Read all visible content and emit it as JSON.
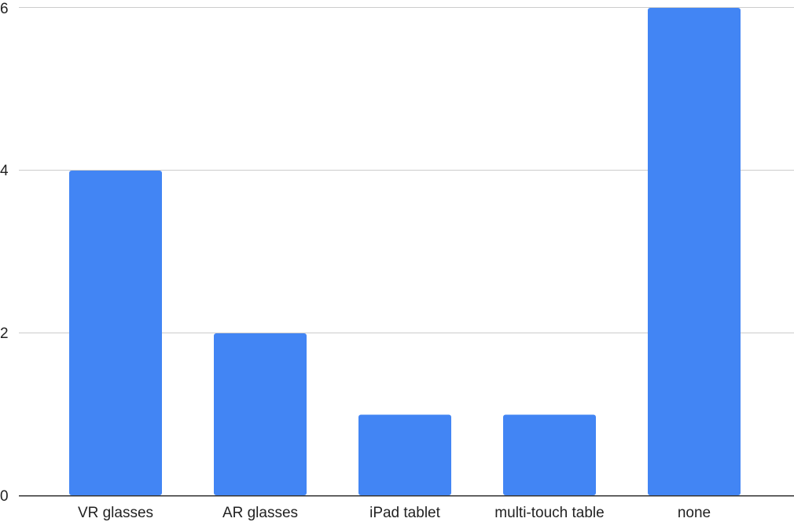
{
  "chart_data": {
    "type": "bar",
    "title": "",
    "xlabel": "",
    "ylabel": "",
    "categories": [
      "VR glasses",
      "AR glasses",
      "iPad tablet",
      "multi-touch table",
      "none"
    ],
    "values": [
      4,
      2,
      1,
      1,
      6
    ],
    "ylim": [
      0,
      6
    ],
    "yticks": [
      0,
      2,
      4,
      6
    ],
    "grid": true,
    "legend": "none",
    "bar_color": "#4285F4",
    "grid_color": "#cccccc",
    "axis_color": "#333333"
  }
}
